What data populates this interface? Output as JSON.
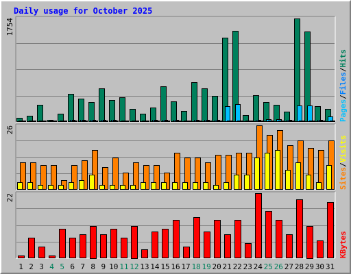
{
  "chart_data": {
    "type": "bar",
    "title": "Daily usage for October 2025",
    "categories": [
      "1",
      "2",
      "3",
      "4",
      "5",
      "6",
      "7",
      "8",
      "9",
      "10",
      "11",
      "12",
      "13",
      "14",
      "15",
      "16",
      "17",
      "18",
      "19",
      "20",
      "21",
      "22",
      "23",
      "24",
      "25",
      "26",
      "27",
      "28",
      "29",
      "30",
      "31"
    ],
    "weekend_days": [
      "4",
      "5",
      "11",
      "12",
      "18",
      "19",
      "25",
      "26"
    ],
    "panels": [
      {
        "id": "hits",
        "ymax": 1754,
        "ymax_label": "1754",
        "legend": [
          "Pages",
          "Files",
          "Hits"
        ],
        "series": [
          {
            "name": "Hits",
            "color": "#00805c",
            "values": [
              70,
              100,
              290,
              40,
              140,
              470,
              390,
              340,
              570,
              370,
              410,
              220,
              140,
              240,
              600,
              350,
              180,
              670,
              560,
              440,
              1420,
              1540,
              120,
              450,
              330,
              290,
              170,
              1740,
              1520,
              270,
              220
            ]
          },
          {
            "name": "Files",
            "color": "#00c0ff",
            "values": [
              10,
              20,
              10,
              10,
              20,
              30,
              40,
              30,
              30,
              30,
              20,
              20,
              20,
              30,
              40,
              30,
              20,
              40,
              30,
              30,
              270,
              300,
              20,
              30,
              50,
              50,
              30,
              280,
              280,
              30,
              90
            ]
          },
          {
            "name": "Pages",
            "color": "#00c0ff",
            "values": [
              4,
              6,
              3,
              3,
              5,
              8,
              10,
              8,
              8,
              8,
              6,
              5,
              5,
              8,
              10,
              8,
              5,
              10,
              8,
              8,
              12,
              14,
              5,
              8,
              12,
              12,
              8,
              14,
              14,
              8,
              20
            ]
          }
        ]
      },
      {
        "id": "visits",
        "ymax": 26,
        "ymax_label": "26",
        "legend": [
          "Sites",
          "Visits"
        ],
        "series": [
          {
            "name": "Visits",
            "color": "#ff8000",
            "values": [
              11,
              11,
              10,
              10,
              4,
              10,
              12,
              16,
              9,
              13,
              7,
              11,
              10,
              10,
              7,
              15,
              13,
              13,
              11,
              14,
              14,
              15,
              15,
              26,
              22,
              24,
              18,
              20,
              17,
              16,
              20
            ]
          },
          {
            "name": "Sites",
            "color": "#ffff00",
            "values": [
              3,
              3,
              2,
              2,
              2,
              3,
              4,
              6,
              2,
              2,
              2,
              2,
              3,
              3,
              3,
              3,
              3,
              3,
              3,
              2,
              3,
              6,
              6,
              13,
              15,
              16,
              8,
              11,
              6,
              3,
              10
            ]
          }
        ]
      },
      {
        "id": "kbytes",
        "ymax": 22,
        "ymax_label": "22",
        "legend": [
          "KBytes"
        ],
        "series": [
          {
            "name": "KBytes",
            "color": "#ff0000",
            "values": [
              1,
              7,
              4,
              1,
              10,
              7,
              8,
              11,
              8,
              10,
              7,
              11,
              3,
              9,
              10,
              13,
              4,
              14,
              9,
              13,
              8,
              13,
              5,
              22,
              16,
              13,
              8,
              20,
              11,
              6,
              19
            ]
          }
        ]
      }
    ]
  }
}
